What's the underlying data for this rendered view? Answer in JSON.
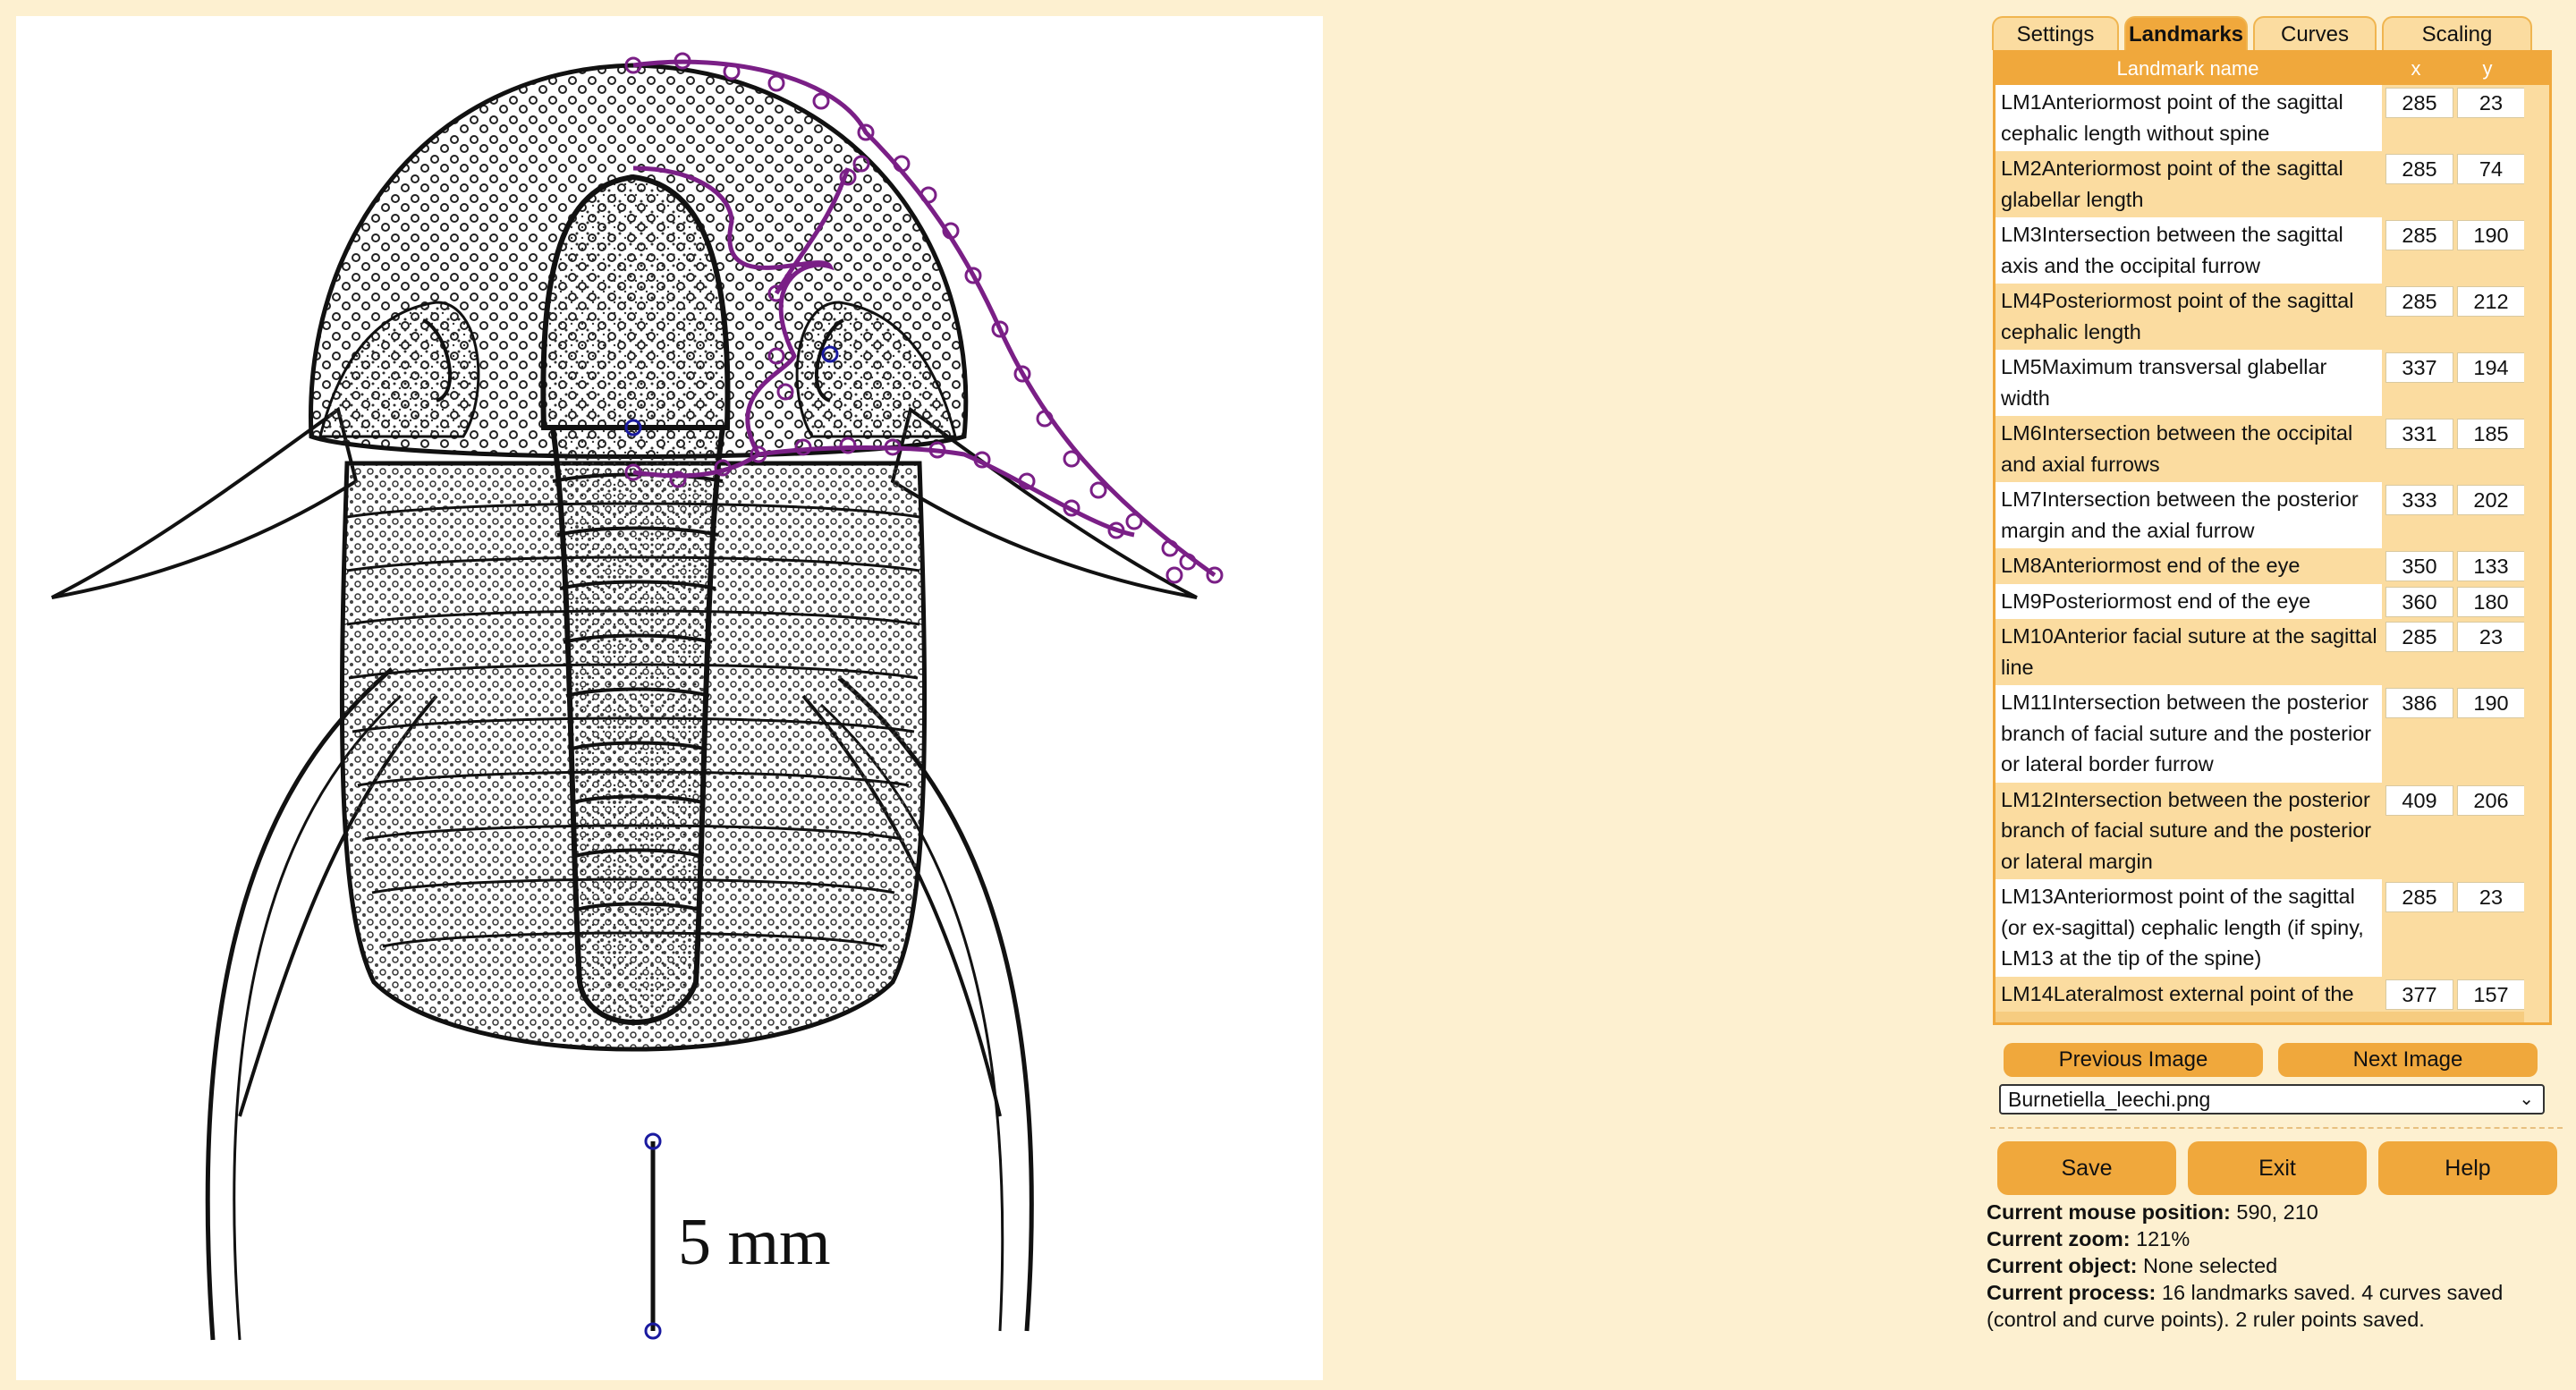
{
  "scale_label": "5 mm",
  "tabs": [
    "Settings",
    "Landmarks",
    "Curves",
    "Scaling"
  ],
  "table": {
    "headers": {
      "name": "Landmark name",
      "x": "x",
      "y": "y"
    },
    "rows": [
      {
        "name": "LM1Anteriormost point of the sagittal cephalic length without spine",
        "x": "285",
        "y": "23"
      },
      {
        "name": "LM2Anteriormost point of the sagittal glabellar length",
        "x": "285",
        "y": "74"
      },
      {
        "name": "LM3Intersection between the sagittal axis and the occipital furrow",
        "x": "285",
        "y": "190"
      },
      {
        "name": "LM4Posteriormost point of the sagittal cephalic length",
        "x": "285",
        "y": "212"
      },
      {
        "name": "LM5Maximum transversal glabellar width",
        "x": "337",
        "y": "194"
      },
      {
        "name": "LM6Intersection between the occipital and axial furrows",
        "x": "331",
        "y": "185"
      },
      {
        "name": "LM7Intersection between the posterior margin and the axial furrow",
        "x": "333",
        "y": "202"
      },
      {
        "name": "LM8Anteriormost end of the eye",
        "x": "350",
        "y": "133"
      },
      {
        "name": "LM9Posteriormost end of the eye",
        "x": "360",
        "y": "180"
      },
      {
        "name": "LM10Anterior facial suture at the sagittal line",
        "x": "285",
        "y": "23"
      },
      {
        "name": "LM11Intersection between the posterior branch of facial suture and the posterior or lateral border furrow",
        "x": "386",
        "y": "190"
      },
      {
        "name": "LM12Intersection between the posterior branch of facial suture and the posterior or lateral margin",
        "x": "409",
        "y": "206"
      },
      {
        "name": "LM13Anteriormost point of the sagittal (or ex-sagittal) cephalic length (if spiny, LM13 at the tip of the spine)",
        "x": "285",
        "y": "23"
      },
      {
        "name": "LM14Lateralmost external point of the",
        "x": "377",
        "y": "157"
      }
    ]
  },
  "nav": {
    "prev": "Previous Image",
    "next": "Next Image"
  },
  "file_select": {
    "value": "Burnetiella_leechi.png"
  },
  "actions": {
    "save": "Save",
    "exit": "Exit",
    "help": "Help"
  },
  "status": {
    "mouse_label": "Current mouse position:",
    "mouse_value": "590, 210",
    "zoom_label": "Current zoom:",
    "zoom_value": "121%",
    "object_label": "Current object:",
    "object_value": "None selected",
    "process_label": "Current process:",
    "process_value": "16 landmarks saved. 4 curves saved (control and curve points). 2 ruler points saved."
  },
  "colors": {
    "accent": "#f0a83c",
    "row_alt": "#fbdca0",
    "curve": "#7a1f86",
    "landmark": "#1a1aa0"
  }
}
